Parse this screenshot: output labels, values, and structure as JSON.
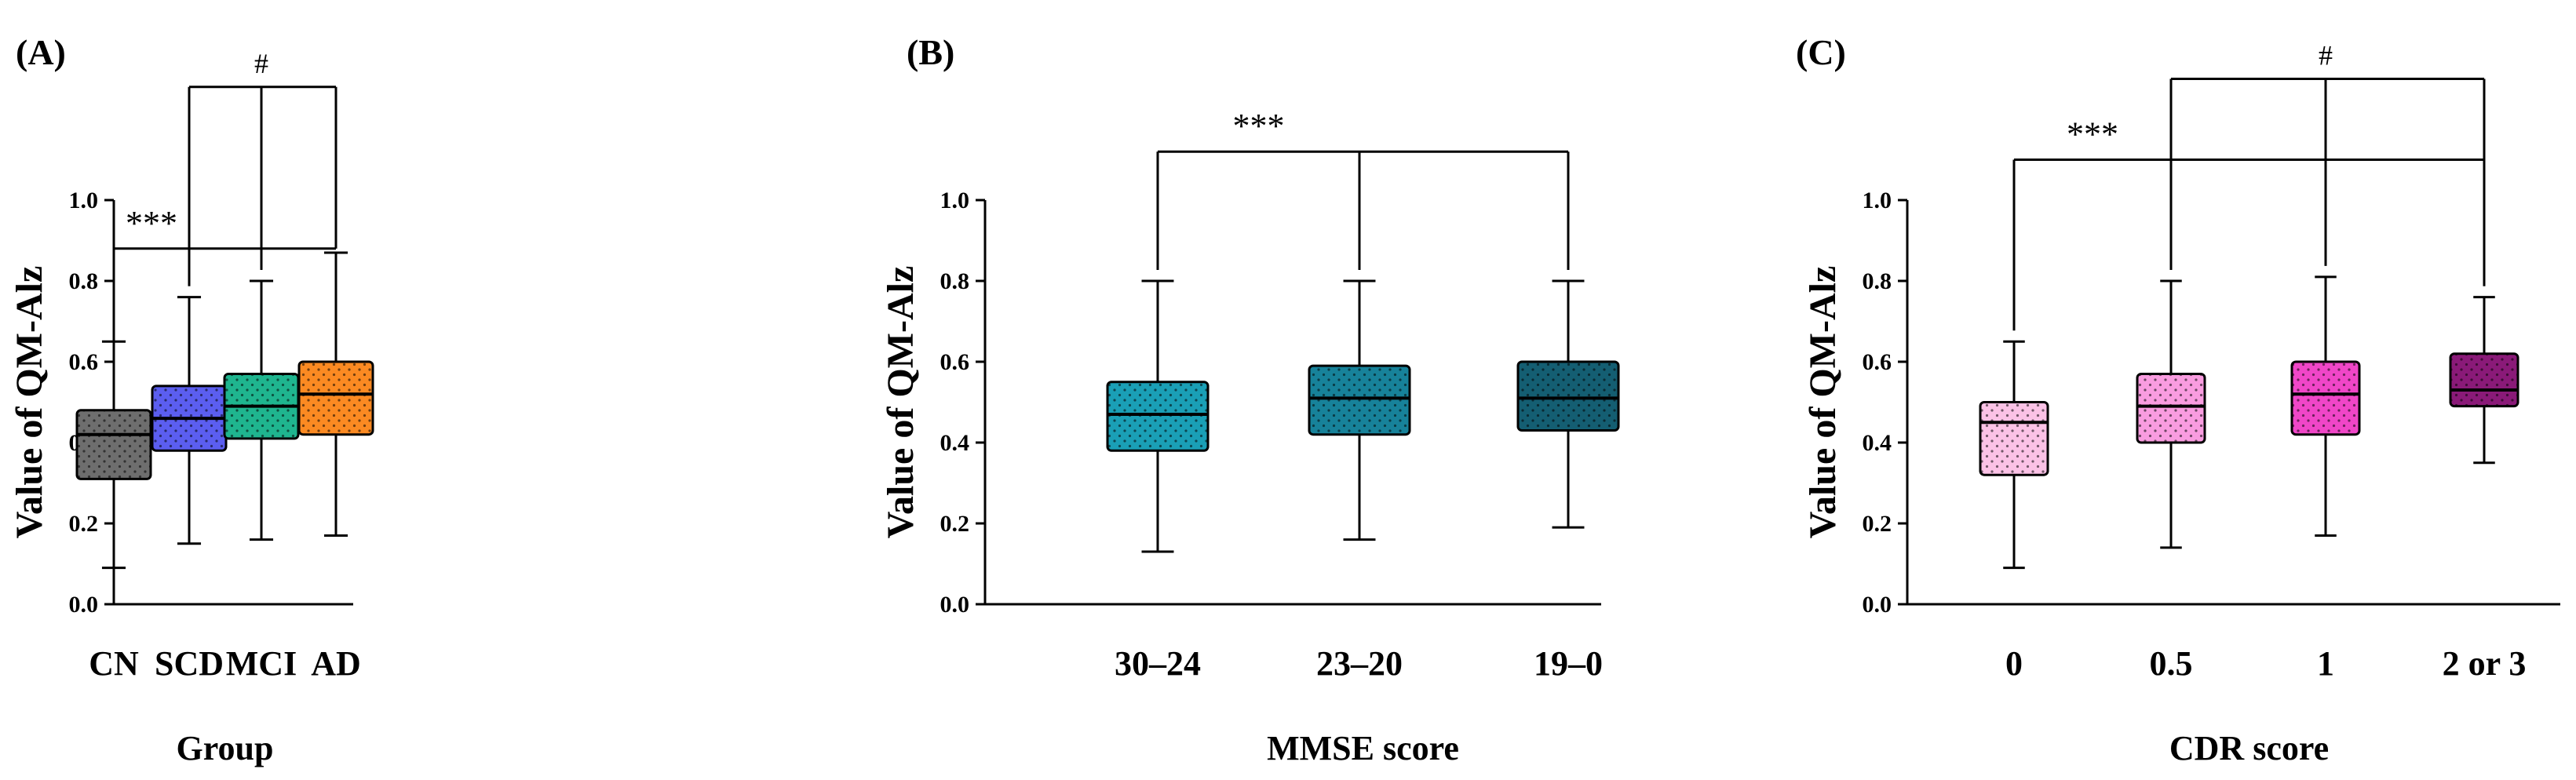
{
  "chart_data": [
    {
      "type": "boxplot",
      "panel_label": "(A)",
      "xlabel": "Group",
      "ylabel": "Value of QM-Alz",
      "ylim": [
        0,
        1.0
      ],
      "yticks": [
        "0.0",
        "0.2",
        "0.4",
        "0.6",
        "0.8",
        "1.0"
      ],
      "categories": [
        "CN",
        "SCD",
        "MCI",
        "AD"
      ],
      "colors": [
        "#6e6e6e",
        "#5b5ef0",
        "#1fb58f",
        "#fb8a22"
      ],
      "boxes": [
        {
          "min": 0.09,
          "q1": 0.31,
          "median": 0.42,
          "q3": 0.48,
          "max": 0.65
        },
        {
          "min": 0.15,
          "q1": 0.38,
          "median": 0.46,
          "q3": 0.54,
          "max": 0.76
        },
        {
          "min": 0.16,
          "q1": 0.41,
          "median": 0.49,
          "q3": 0.57,
          "max": 0.8
        },
        {
          "min": 0.17,
          "q1": 0.42,
          "median": 0.52,
          "q3": 0.6,
          "max": 0.87
        }
      ],
      "brackets": [
        {
          "from": 0,
          "to": [
            1,
            3
          ],
          "label": "***",
          "level": 0.88
        },
        {
          "from": 1,
          "to": [
            2,
            3
          ],
          "label": "#",
          "level": 1.28
        }
      ]
    },
    {
      "type": "boxplot",
      "panel_label": "(B)",
      "xlabel": "MMSE score",
      "ylabel": "Value of QM-Alz",
      "ylim": [
        0,
        1.0
      ],
      "yticks": [
        "0.0",
        "0.2",
        "0.4",
        "0.6",
        "0.8",
        "1.0"
      ],
      "categories": [
        "30–24",
        "23–20",
        "19–0"
      ],
      "colors": [
        "#1a9fb6",
        "#17829a",
        "#145e72"
      ],
      "boxes": [
        {
          "min": 0.13,
          "q1": 0.38,
          "median": 0.47,
          "q3": 0.55,
          "max": 0.8
        },
        {
          "min": 0.16,
          "q1": 0.42,
          "median": 0.51,
          "q3": 0.59,
          "max": 0.8
        },
        {
          "min": 0.19,
          "q1": 0.43,
          "median": 0.51,
          "q3": 0.6,
          "max": 0.8
        }
      ],
      "brackets": [
        {
          "from": 0,
          "to": [
            1,
            2
          ],
          "label": "***",
          "level": 1.12
        }
      ]
    },
    {
      "type": "boxplot",
      "panel_label": "(C)",
      "xlabel": "CDR score",
      "ylabel": "Value of QM-Alz",
      "ylim": [
        0,
        1.0
      ],
      "yticks": [
        "0.0",
        "0.2",
        "0.4",
        "0.6",
        "0.8",
        "1.0"
      ],
      "categories": [
        "0",
        "0.5",
        "1",
        "2 or 3"
      ],
      "colors": [
        "#fbc2e6",
        "#f99ce0",
        "#f046c8",
        "#8a1a78"
      ],
      "boxes": [
        {
          "min": 0.09,
          "q1": 0.32,
          "median": 0.45,
          "q3": 0.5,
          "max": 0.65
        },
        {
          "min": 0.14,
          "q1": 0.4,
          "median": 0.49,
          "q3": 0.57,
          "max": 0.8
        },
        {
          "min": 0.17,
          "q1": 0.42,
          "median": 0.52,
          "q3": 0.6,
          "max": 0.81
        },
        {
          "min": 0.35,
          "q1": 0.49,
          "median": 0.53,
          "q3": 0.62,
          "max": 0.76
        }
      ],
      "brackets": [
        {
          "from": 0,
          "to": [
            1,
            3
          ],
          "label": "***",
          "level": 1.1
        },
        {
          "from": 1,
          "to": [
            2,
            3
          ],
          "label": "#",
          "level": 1.3
        }
      ]
    }
  ]
}
